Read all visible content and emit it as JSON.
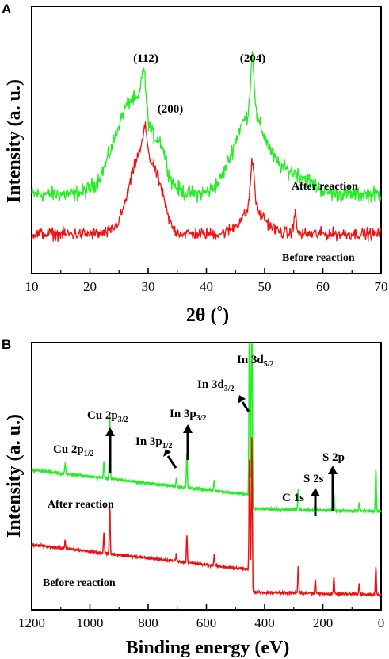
{
  "chart_data": [
    {
      "panel": "A",
      "type": "line",
      "xlabel": "2θ (°)",
      "ylabel": "Intensity (a. u.)",
      "xlim": [
        10,
        70
      ],
      "xticks": [
        10,
        20,
        30,
        40,
        50,
        60,
        70
      ],
      "yticks_shown": false,
      "colors": {
        "after": "#22ee22",
        "before": "#ee1111"
      },
      "series": [
        {
          "name": "After reaction",
          "color": "#22ee22",
          "baseline": 0.2,
          "noise": 0.045,
          "peaks": [
            {
              "center": 27.5,
              "height": 0.48,
              "width": 4.5
            },
            {
              "center": 29.2,
              "height": 0.22,
              "width": 0.55
            },
            {
              "center": 32.3,
              "height": 0.1,
              "width": 1.2
            },
            {
              "center": 47.5,
              "height": 0.4,
              "width": 4.0
            },
            {
              "center": 47.9,
              "height": 0.3,
              "width": 0.45
            },
            {
              "center": 55.0,
              "height": 0.1,
              "width": 4.0
            }
          ]
        },
        {
          "name": "Before reaction",
          "color": "#ee1111",
          "baseline": 0.0,
          "noise": 0.035,
          "peaks": [
            {
              "center": 29.0,
              "height": 0.42,
              "width": 3.0
            },
            {
              "center": 29.5,
              "height": 0.12,
              "width": 0.5
            },
            {
              "center": 32.0,
              "height": 0.1,
              "width": 1.5
            },
            {
              "center": 47.9,
              "height": 0.24,
              "width": 0.5
            },
            {
              "center": 48.0,
              "height": 0.12,
              "width": 3.0
            },
            {
              "center": 55.2,
              "height": 0.1,
              "width": 0.35
            }
          ]
        }
      ],
      "annotations": [
        {
          "text": "(112)",
          "x": 29.2
        },
        {
          "text": "(200)",
          "x": 32.3
        },
        {
          "text": "(204)",
          "x": 47.9
        }
      ]
    },
    {
      "panel": "B",
      "type": "line",
      "xlabel": "Binding energy (eV)",
      "ylabel": "Intensity (a. u.)",
      "xlim": [
        1200,
        0
      ],
      "xticks": [
        1200,
        1000,
        800,
        600,
        400,
        200,
        0
      ],
      "yticks_shown": false,
      "series": [
        {
          "name": "After reaction",
          "color": "#22ee22",
          "low_energy_level": 0.3,
          "high_energy_level": 0.45,
          "peaks": [
            {
              "center": 1085,
              "height": 0.04
            },
            {
              "center": 952,
              "height": 0.06
            },
            {
              "center": 932,
              "height": 0.24
            },
            {
              "center": 703,
              "height": 0.03
            },
            {
              "center": 667,
              "height": 0.12
            },
            {
              "center": 573,
              "height": 0.04
            },
            {
              "center": 452,
              "height": 0.84
            },
            {
              "center": 444,
              "height": 0.95
            },
            {
              "center": 284.5,
              "height": 0.08
            },
            {
              "center": 226,
              "height": 0.05
            },
            {
              "center": 162,
              "height": 0.06
            },
            {
              "center": 75,
              "height": 0.03
            },
            {
              "center": 18,
              "height": 0.15
            }
          ]
        },
        {
          "name": "Before reaction",
          "color": "#ee1111",
          "low_energy_level": 0.0,
          "high_energy_level": 0.18,
          "peaks": [
            {
              "center": 1085,
              "height": 0.03
            },
            {
              "center": 952,
              "height": 0.07
            },
            {
              "center": 932,
              "height": 0.18
            },
            {
              "center": 703,
              "height": 0.03
            },
            {
              "center": 667,
              "height": 0.1
            },
            {
              "center": 573,
              "height": 0.04
            },
            {
              "center": 452,
              "height": 0.4
            },
            {
              "center": 444,
              "height": 0.48
            },
            {
              "center": 284.5,
              "height": 0.1
            },
            {
              "center": 226,
              "height": 0.05
            },
            {
              "center": 162,
              "height": 0.06
            },
            {
              "center": 75,
              "height": 0.04
            },
            {
              "center": 18,
              "height": 0.1
            }
          ]
        }
      ],
      "annotations": [
        {
          "main": "Cu 2p",
          "sub": "1/2",
          "x": 952
        },
        {
          "main": "Cu 2p",
          "sub": "3/2",
          "x": 932
        },
        {
          "main": "In 3p",
          "sub": "1/2",
          "x": 703
        },
        {
          "main": "In 3p",
          "sub": "3/2",
          "x": 667
        },
        {
          "main": "In 3d",
          "sub": "3/2",
          "x": 452
        },
        {
          "main": "In 3d",
          "sub": "5/2",
          "x": 444
        },
        {
          "main": "C 1s",
          "sub": "",
          "x": 284.5
        },
        {
          "main": "S 2s",
          "sub": "",
          "x": 226
        },
        {
          "main": "S 2p",
          "sub": "",
          "x": 162
        }
      ]
    }
  ],
  "panels": {
    "a": {
      "label": "A",
      "xlabel_main": "2θ (",
      "xlabel_deg": "°",
      "xlabel_end": ")",
      "ylabel": "Intensity (a. u.)",
      "after_label": "After reaction",
      "before_label": "Before reaction",
      "peak_112": "(112)",
      "peak_200": "(200)",
      "peak_204": "(204)"
    },
    "b": {
      "label": "B",
      "xlabel": "Binding energy (eV)",
      "ylabel": "Intensity (a. u.)",
      "after_label": "After reaction",
      "before_label": "Before reaction",
      "cu_2p12": "Cu 2p",
      "cu_2p12_sub": "1/2",
      "cu_2p32": "Cu 2p",
      "cu_2p32_sub": "3/2",
      "in_3p12": "In 3p",
      "in_3p12_sub": "1/2",
      "in_3p32": "In 3p",
      "in_3p32_sub": "3/2",
      "in_3d32": "In 3d",
      "in_3d32_sub": "3/2",
      "in_3d52": "In 3d",
      "in_3d52_sub": "5/2",
      "c_1s": "C 1s",
      "s_2s": "S 2s",
      "s_2p": "S 2p"
    }
  }
}
